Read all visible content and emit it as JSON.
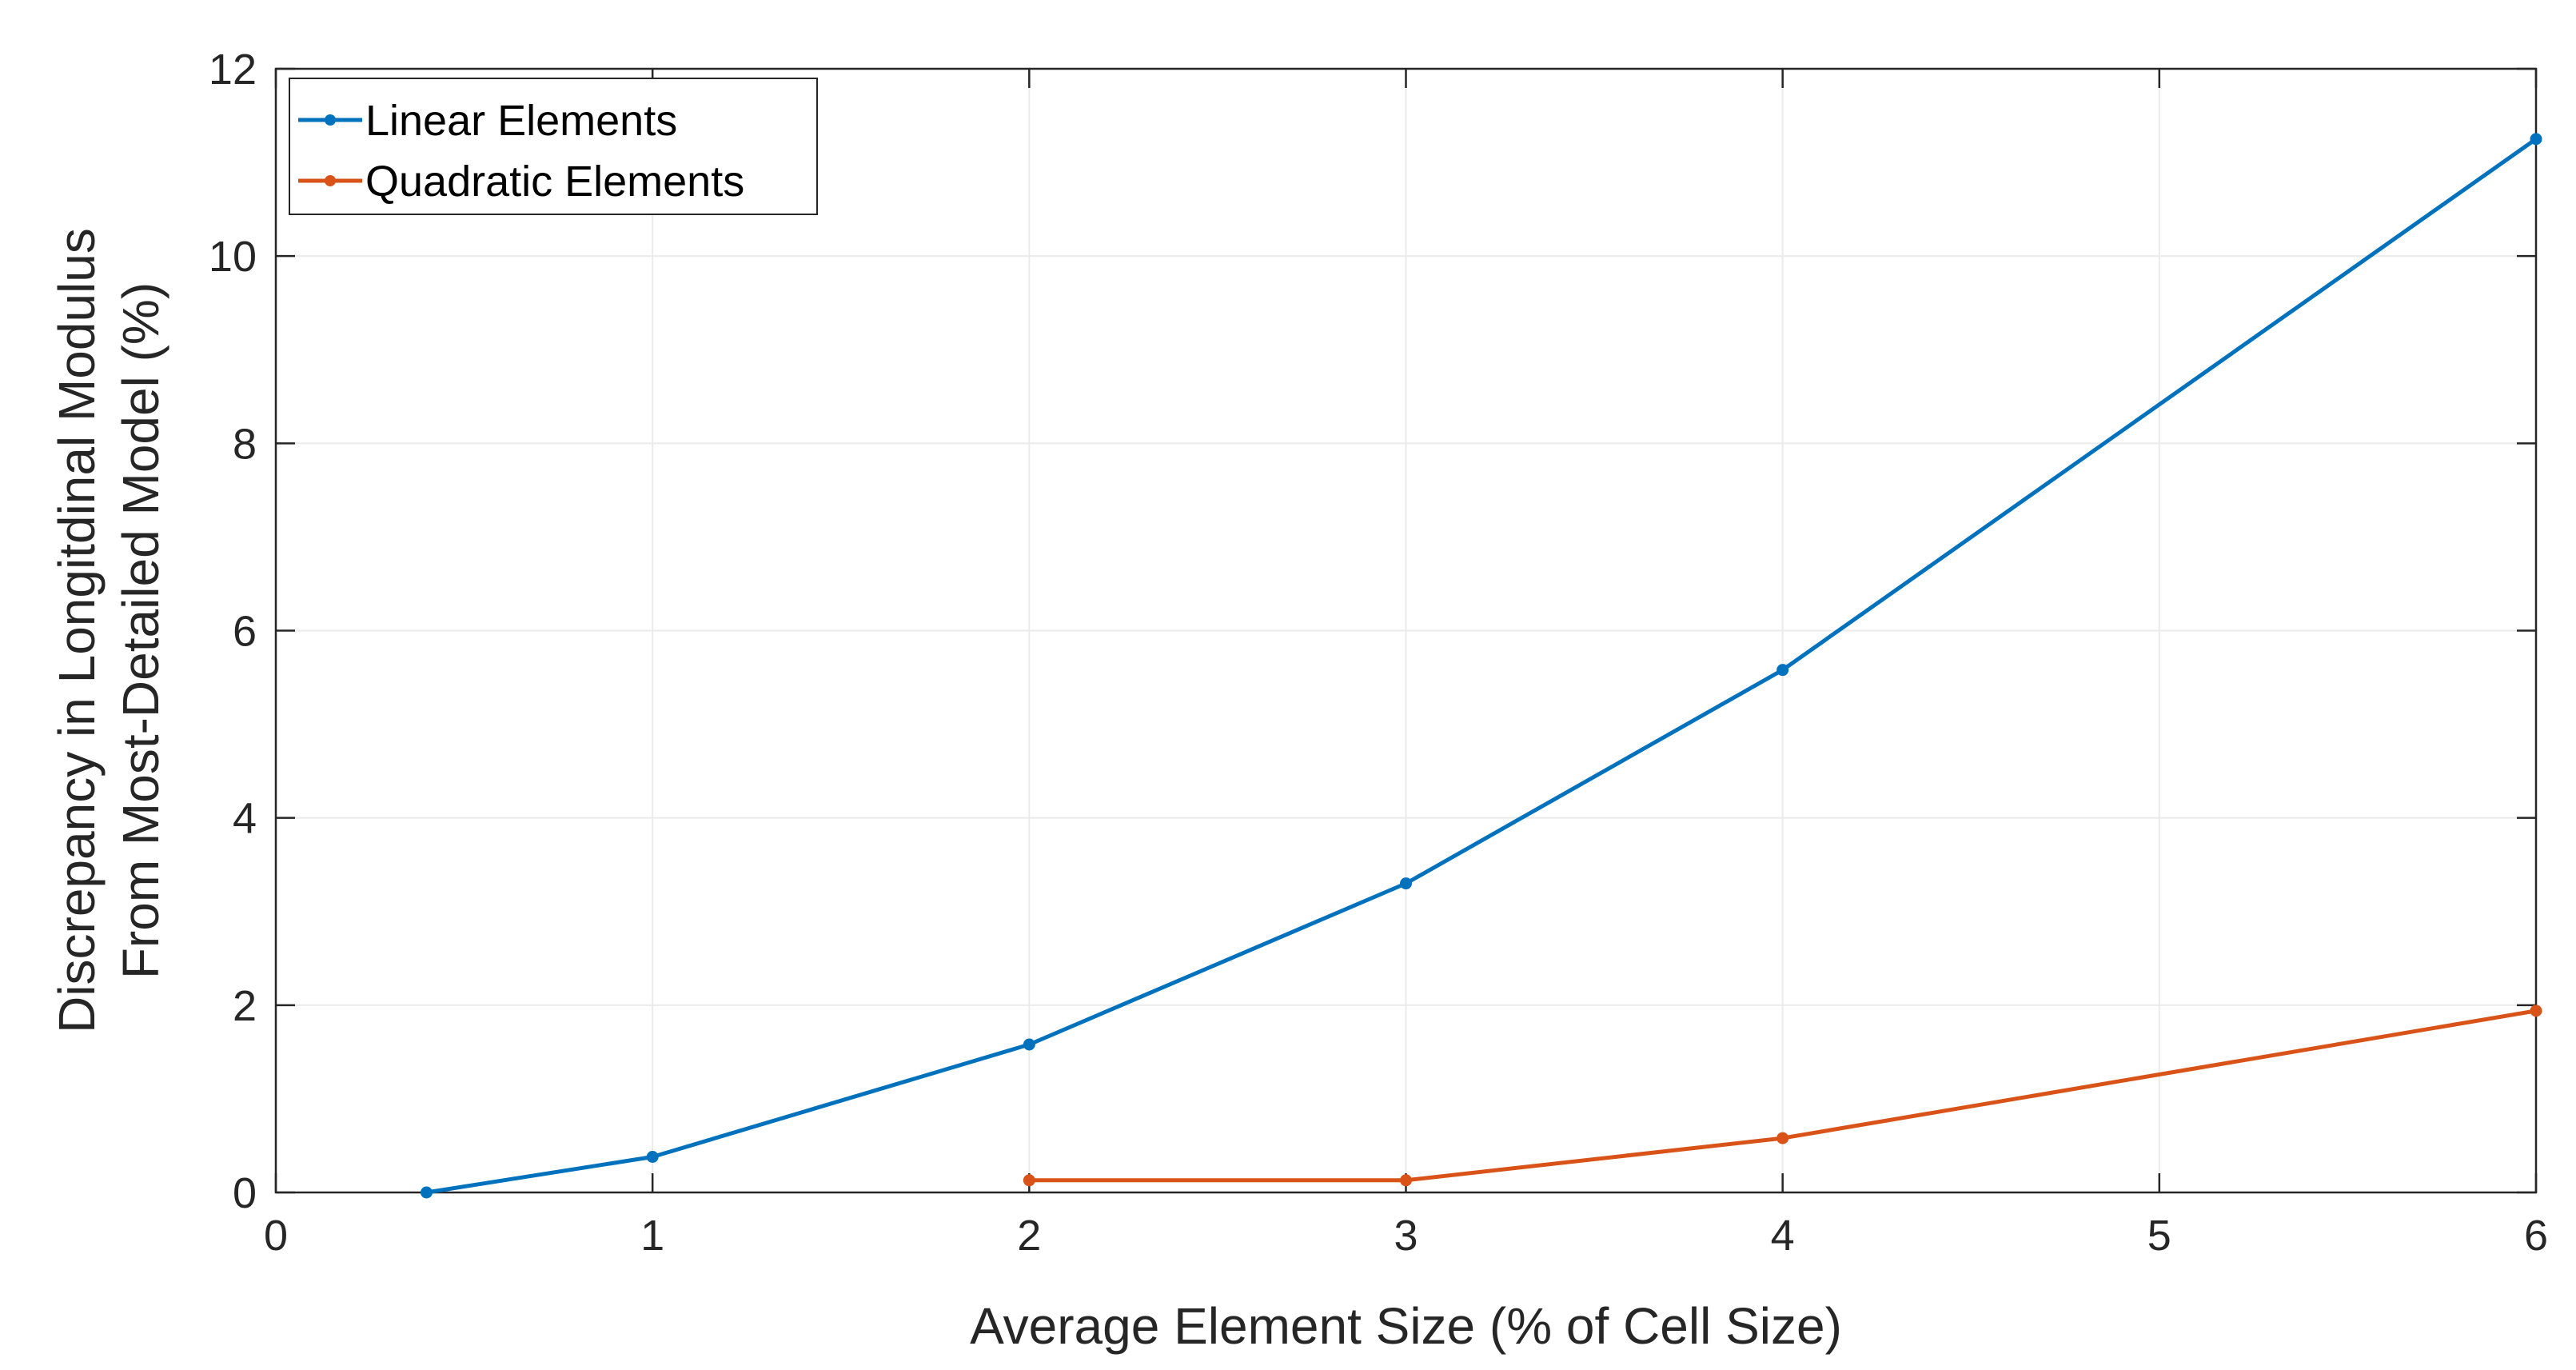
{
  "chart_data": {
    "type": "line",
    "title": "",
    "xlabel": "Average Element Size (% of Cell Size)",
    "ylabel_lines": [
      "Discrepancy in Longitdinal Modulus",
      "From Most-Detailed Model (%)"
    ],
    "xlim": [
      0,
      6
    ],
    "ylim": [
      0,
      12
    ],
    "xticks": [
      0,
      1,
      2,
      3,
      4,
      5,
      6
    ],
    "yticks": [
      0,
      2,
      4,
      6,
      8,
      10,
      12
    ],
    "grid": true,
    "legend_location": "top-left",
    "series": [
      {
        "name": "Linear Elements",
        "color": "#0072BD",
        "x": [
          0.4,
          1,
          2,
          3,
          4,
          6
        ],
        "y": [
          0.0,
          0.38,
          1.58,
          3.3,
          5.58,
          11.25
        ]
      },
      {
        "name": "Quadratic Elements",
        "color": "#D95319",
        "x": [
          2,
          3,
          4,
          6
        ],
        "y": [
          0.13,
          0.13,
          0.58,
          1.94
        ]
      }
    ]
  }
}
